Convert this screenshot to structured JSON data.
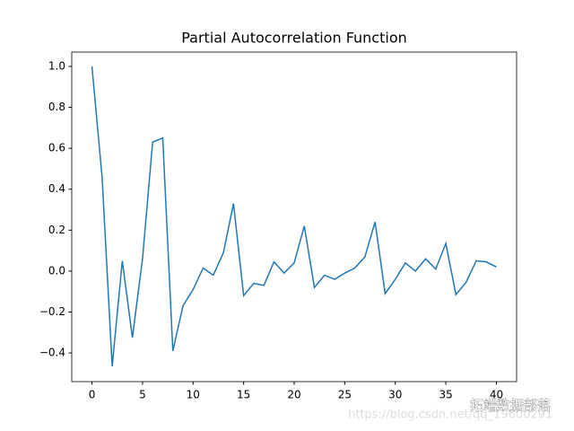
{
  "chart_data": {
    "type": "line",
    "title": "Partial Autocorrelation Function",
    "x": [
      0,
      1,
      2,
      3,
      4,
      5,
      6,
      7,
      8,
      9,
      10,
      11,
      12,
      13,
      14,
      15,
      16,
      17,
      18,
      19,
      20,
      21,
      22,
      23,
      24,
      25,
      26,
      27,
      28,
      29,
      30,
      31,
      32,
      33,
      34,
      35,
      36,
      37,
      38,
      39,
      40
    ],
    "series": [
      {
        "color": "#1f77b4",
        "values": [
          1.0,
          0.46,
          -0.465,
          0.05,
          -0.325,
          0.06,
          0.63,
          0.65,
          -0.39,
          -0.17,
          -0.09,
          0.015,
          -0.02,
          0.09,
          0.33,
          -0.12,
          -0.06,
          -0.07,
          0.045,
          -0.01,
          0.04,
          0.22,
          -0.08,
          -0.02,
          -0.04,
          -0.01,
          0.015,
          0.07,
          0.24,
          -0.11,
          -0.04,
          0.04,
          0.0,
          0.06,
          0.01,
          0.135,
          -0.115,
          -0.055,
          0.05,
          0.045,
          0.02
        ]
      }
    ],
    "xlim": [
      -2,
      42
    ],
    "ylim": [
      -0.54,
      1.07
    ],
    "xticks": [
      0,
      5,
      10,
      15,
      20,
      25,
      30,
      35,
      40
    ],
    "yticks": [
      {
        "value": -0.4,
        "label": "−0.4"
      },
      {
        "value": -0.2,
        "label": "−0.2"
      },
      {
        "value": 0,
        "label": "0.0"
      },
      {
        "value": 0.2,
        "label": "0.2"
      },
      {
        "value": 0.4,
        "label": "0.4"
      },
      {
        "value": 0.6,
        "label": "0.6"
      },
      {
        "value": 0.8,
        "label": "0.8"
      },
      {
        "value": 1.0,
        "label": "1.0"
      }
    ],
    "grid": false
  },
  "watermark": {
    "brand": "拓端数据部落",
    "url": "https://blog.csdn.net/qq_19600291"
  }
}
